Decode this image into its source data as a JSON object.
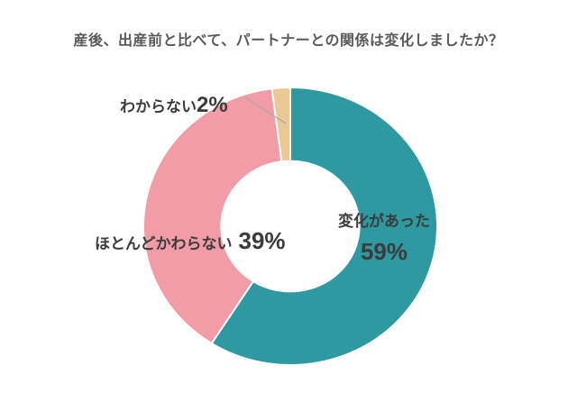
{
  "chart_data": {
    "type": "pie",
    "variant": "donut",
    "title": "産後、出産前と比べて、パートナーとの関係は変化しましたか？",
    "start_angle_deg": 0,
    "direction": "clockwise",
    "donut_hole_ratio": 0.47,
    "background": "#ffffff",
    "title_color": "#595959",
    "label_color": "#3b3b3b",
    "leader_line_color": "#a8a8a8",
    "legend": "none",
    "slices": [
      {
        "key": "changed",
        "label": "変化があった",
        "value_pct": 59,
        "pct_text": "59%",
        "color": "#2e99a1"
      },
      {
        "key": "mostly-unchanged",
        "label": "ほとんどかわらない",
        "value_pct": 39,
        "pct_text": "39%",
        "color": "#f19ca7"
      },
      {
        "key": "unknown",
        "label": "わからない",
        "value_pct": 2,
        "pct_text": "2%",
        "color": "#e9c892"
      }
    ]
  }
}
